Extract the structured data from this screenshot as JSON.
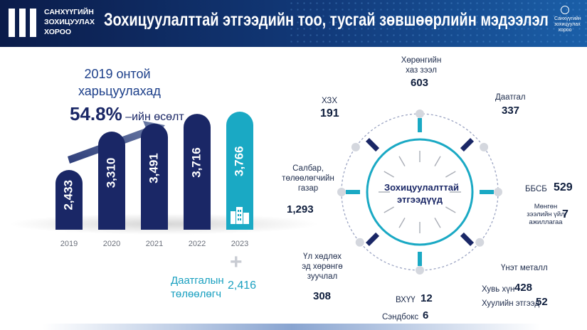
{
  "header": {
    "org_line1": "САНХҮҮГИЙН",
    "org_line2": "ЗОХИЦУУЛАХ",
    "org_line3": "ХОРОО",
    "title": "Зохицуулалттай этгээдийн тоо, тусгай зөвшөөрлийн мэдээлэл",
    "right_logo_text": "Санхүүгийн зохицуулах хороо"
  },
  "growth": {
    "line1": "2019 онтой",
    "line2": "харьцуулахад",
    "percent": "54.8%",
    "suffix": "–ийн өсөлт"
  },
  "colors": {
    "navy": "#1a2766",
    "teal": "#1aa9c4",
    "header_bg": "#0d2158"
  },
  "chart_data": {
    "type": "bar",
    "categories": [
      "2019",
      "2020",
      "2021",
      "2022",
      "2023"
    ],
    "values": [
      2433,
      3310,
      3491,
      3716,
      3766
    ],
    "value_labels": [
      "2,433",
      "3,310",
      "3,491",
      "3,716",
      "3,766"
    ],
    "title": "",
    "xlabel": "",
    "ylabel": ""
  },
  "extra": {
    "plus": "+",
    "label_line1": "Даатгалын",
    "label_line2": "төлөөлөгч",
    "value": "2,416"
  },
  "wheel": {
    "center_line1": "Зохицуулалттай",
    "center_line2": "этгээдүүд",
    "items": [
      {
        "label": "Хөрөнгийн\nхаз зээл",
        "value": "603"
      },
      {
        "label": "Даатгал",
        "value": "337"
      },
      {
        "label": "ББСБ",
        "value": "529"
      },
      {
        "label": "Мөнгөн\nзээлийн үйл\nажиллагаа",
        "value": "7"
      },
      {
        "label": "Үнэт металл",
        "value": ""
      },
      {
        "label": "Хувь хүн",
        "value": "428"
      },
      {
        "label": "Хуулийн этгээд",
        "value": "52"
      },
      {
        "label": "ВХҮҮ",
        "value": "12"
      },
      {
        "label": "Сэндбокс",
        "value": "6"
      },
      {
        "label": "Үл хөдлөх\nэд хөрөнгө\nзуучлал",
        "value": "308"
      },
      {
        "label": "Салбар,\nтөлөөлөгчийн\nгазар",
        "value": "1,293"
      },
      {
        "label": "ХЗХ",
        "value": "191"
      }
    ]
  }
}
